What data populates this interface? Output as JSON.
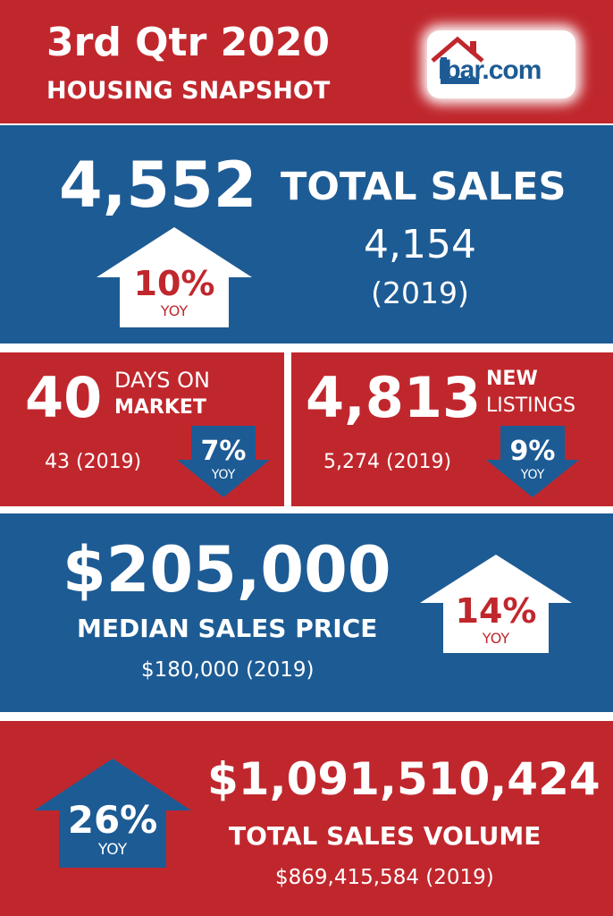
{
  "header": {
    "title": "3rd Qtr 2020",
    "subtitle": "HOUSING SNAPSHOT",
    "logo_text": "lbar.com"
  },
  "total_sales": {
    "value": "4,552",
    "label": "TOTAL SALES",
    "prev_value": "4,154",
    "prev_year": "(2019)",
    "change_pct": "10%",
    "change_label": "YOY",
    "direction": "up"
  },
  "days_on_market": {
    "value": "40",
    "label_line1": "DAYS ON",
    "label_line2": "MARKET",
    "prev": "43 (2019)",
    "change_pct": "7%",
    "change_label": "YOY",
    "direction": "down"
  },
  "new_listings": {
    "value": "4,813",
    "label_line1": "NEW",
    "label_line2": "LISTINGS",
    "prev": "5,274 (2019)",
    "change_pct": "9%",
    "change_label": "YOY",
    "direction": "down"
  },
  "median_price": {
    "value": "$205,000",
    "label": "MEDIAN SALES PRICE",
    "prev": "$180,000 (2019)",
    "change_pct": "14%",
    "change_label": "YOY",
    "direction": "up"
  },
  "sales_volume": {
    "value": "$1,091,510,424",
    "label": "TOTAL SALES VOLUME",
    "prev": "$869,415,584 (2019)",
    "change_pct": "26%",
    "change_label": "YOY",
    "direction": "up"
  },
  "colors": {
    "red": "#c0272d",
    "blue": "#1d5b94",
    "white": "#ffffff"
  }
}
